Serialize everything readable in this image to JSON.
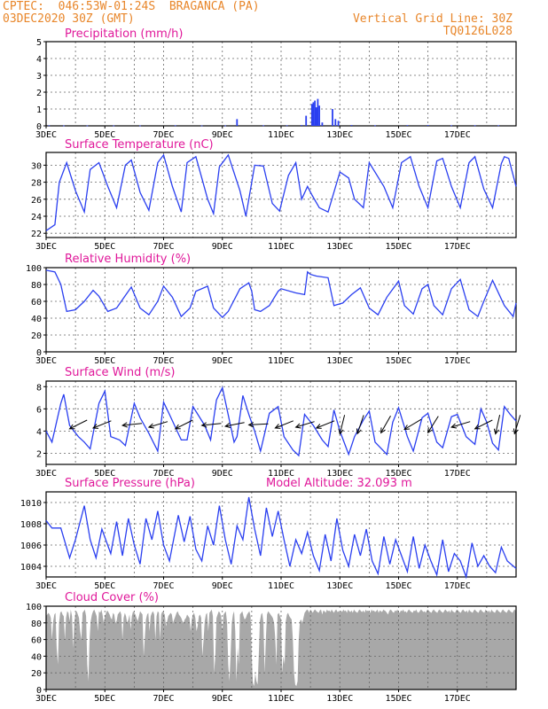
{
  "header": {
    "line1": "CPTEC:  046:53W-01:24S  BRAGANCA (PA)",
    "line2": "03DEC2020 30Z (GMT)",
    "grid_note": "Vertical Grid Line: 30Z",
    "code": "TQ0126L028"
  },
  "colors": {
    "header": "#e8862a",
    "title": "#e0189a",
    "line": "#2a3ff0",
    "arrow": "#000000",
    "cloud": "#a8a8a8",
    "grid": "#666666"
  },
  "x_ticks": [
    "3DEC",
    "5DEC",
    "7DEC",
    "9DEC",
    "11DEC",
    "13DEC",
    "15DEC",
    "17DEC"
  ],
  "chart_data": [
    {
      "type": "bar",
      "title": "Precipitation (mm/h)",
      "ylim": [
        0,
        5
      ],
      "yticks": [
        0,
        1,
        2,
        3,
        4,
        5
      ],
      "x_unit": "days since 3DEC",
      "x_range": [
        0,
        16
      ],
      "values_xy": [
        [
          0.1,
          0.03
        ],
        [
          0.6,
          0.02
        ],
        [
          1.4,
          0.02
        ],
        [
          2.3,
          0.02
        ],
        [
          3.2,
          0.02
        ],
        [
          4.4,
          0.03
        ],
        [
          5.3,
          0.02
        ],
        [
          6.1,
          0.02
        ],
        [
          6.5,
          0.4
        ],
        [
          7.4,
          0.03
        ],
        [
          8.2,
          0.03
        ],
        [
          8.7,
          0.05
        ],
        [
          8.85,
          0.6
        ],
        [
          9.05,
          1.3
        ],
        [
          9.1,
          1.4
        ],
        [
          9.15,
          1.5
        ],
        [
          9.2,
          1.1
        ],
        [
          9.25,
          1.6
        ],
        [
          9.3,
          1.2
        ],
        [
          9.4,
          0.2
        ],
        [
          9.75,
          1.0
        ],
        [
          9.85,
          0.4
        ],
        [
          9.95,
          0.3
        ],
        [
          10.4,
          0.05
        ],
        [
          11.2,
          0.03
        ],
        [
          12.3,
          0.04
        ],
        [
          13.0,
          0.05
        ],
        [
          13.8,
          0.03
        ],
        [
          14.6,
          0.03
        ],
        [
          15.4,
          0.03
        ]
      ]
    },
    {
      "type": "line",
      "title": "Surface Temperature (nC)",
      "ylim": [
        21.5,
        31.5
      ],
      "yticks": [
        22,
        24,
        26,
        28,
        30
      ],
      "x_range": [
        0,
        16
      ],
      "x": [
        0,
        0.3,
        0.45,
        0.7,
        1.0,
        1.3,
        1.5,
        1.8,
        2.1,
        2.4,
        2.7,
        2.9,
        3.2,
        3.5,
        3.8,
        4.0,
        4.3,
        4.6,
        4.8,
        5.1,
        5.5,
        5.7,
        5.9,
        6.2,
        6.6,
        6.8,
        7.1,
        7.4,
        7.7,
        7.95,
        8.25,
        8.5,
        8.7,
        8.9,
        9.05,
        9.3,
        9.6,
        10.0,
        10.3,
        10.5,
        10.8,
        11.0,
        11.5,
        11.8,
        12.1,
        12.4,
        12.7,
        13.0,
        13.3,
        13.5,
        13.8,
        14.1,
        14.4,
        14.6,
        14.9,
        15.2,
        15.5,
        15.6,
        15.75,
        16.0
      ],
      "values": [
        22.3,
        23.0,
        28.0,
        30.3,
        27.0,
        24.5,
        29.5,
        30.3,
        27.5,
        25.0,
        30.0,
        30.6,
        26.8,
        24.7,
        30.3,
        31.2,
        27.5,
        24.5,
        30.3,
        31.0,
        26.0,
        24.3,
        29.8,
        31.2,
        27.0,
        24.0,
        30.0,
        29.9,
        25.5,
        24.6,
        28.8,
        30.3,
        26.0,
        27.5,
        26.5,
        25.0,
        24.5,
        29.2,
        28.5,
        26.0,
        25.0,
        30.3,
        27.5,
        25.0,
        30.3,
        31.0,
        27.5,
        25.0,
        30.5,
        30.8,
        27.5,
        25.0,
        30.3,
        31.0,
        27.2,
        25.0,
        30.2,
        31.0,
        30.8,
        27.5
      ]
    },
    {
      "type": "line",
      "title": "Relative Humidity (%)",
      "ylim": [
        0,
        100
      ],
      "yticks": [
        0,
        20,
        40,
        60,
        80,
        100
      ],
      "x_range": [
        0,
        16
      ],
      "x": [
        0,
        0.3,
        0.5,
        0.7,
        1.0,
        1.3,
        1.6,
        1.8,
        2.1,
        2.4,
        2.7,
        2.9,
        3.2,
        3.5,
        3.8,
        4.0,
        4.3,
        4.6,
        4.9,
        5.1,
        5.5,
        5.7,
        6.0,
        6.2,
        6.6,
        6.9,
        7.0,
        7.1,
        7.3,
        7.6,
        7.9,
        8.0,
        8.5,
        8.8,
        8.9,
        9.0,
        9.2,
        9.6,
        9.8,
        10.1,
        10.4,
        10.7,
        11.0,
        11.3,
        11.6,
        12.0,
        12.2,
        12.5,
        12.8,
        13.0,
        13.2,
        13.5,
        13.8,
        14.1,
        14.4,
        14.7,
        14.9,
        15.2,
        15.6,
        15.9,
        16.0
      ],
      "values": [
        97,
        95,
        80,
        48,
        50,
        60,
        73,
        66,
        48,
        52,
        67,
        77,
        52,
        44,
        60,
        78,
        65,
        42,
        52,
        72,
        78,
        52,
        41,
        48,
        75,
        82,
        72,
        50,
        48,
        55,
        72,
        75,
        70,
        68,
        95,
        92,
        90,
        88,
        55,
        58,
        68,
        76,
        52,
        44,
        65,
        84,
        55,
        45,
        75,
        80,
        55,
        44,
        75,
        86,
        50,
        42,
        60,
        85,
        55,
        42,
        58
      ]
    },
    {
      "type": "line",
      "title": "Surface Wind (m/s)",
      "ylim": [
        1,
        8.5
      ],
      "yticks": [
        2,
        4,
        6,
        8
      ],
      "x_range": [
        0,
        16
      ],
      "x": [
        0,
        0.2,
        0.5,
        0.6,
        0.8,
        1.1,
        1.3,
        1.5,
        1.8,
        2.0,
        2.2,
        2.5,
        2.7,
        3.0,
        3.2,
        3.5,
        3.8,
        4.0,
        4.2,
        4.6,
        4.8,
        5.0,
        5.4,
        5.6,
        5.8,
        6.0,
        6.4,
        6.5,
        6.7,
        6.9,
        7.1,
        7.3,
        7.6,
        7.9,
        8.1,
        8.4,
        8.6,
        8.8,
        9.1,
        9.4,
        9.6,
        9.8,
        10.0,
        10.3,
        10.5,
        10.8,
        11.0,
        11.2,
        11.6,
        11.8,
        12.0,
        12.3,
        12.5,
        12.8,
        13.0,
        13.3,
        13.5,
        13.8,
        14.0,
        14.3,
        14.6,
        14.8,
        15.0,
        15.2,
        15.4,
        15.6,
        15.8,
        16.0
      ],
      "values": [
        4.0,
        3.0,
        6.5,
        7.3,
        4.5,
        3.5,
        3.0,
        2.4,
        6.5,
        7.6,
        3.5,
        3.2,
        2.7,
        6.5,
        5.2,
        3.8,
        2.2,
        6.6,
        5.5,
        3.2,
        3.2,
        6.2,
        4.5,
        3.2,
        6.8,
        7.9,
        3.0,
        3.5,
        7.2,
        5.5,
        4.0,
        2.2,
        5.6,
        6.2,
        3.5,
        2.3,
        1.8,
        5.5,
        4.5,
        3.2,
        2.6,
        5.9,
        4.0,
        1.9,
        3.5,
        5.0,
        5.8,
        3.0,
        1.9,
        4.8,
        6.1,
        3.5,
        2.2,
        5.2,
        5.6,
        3.0,
        2.5,
        5.3,
        5.5,
        3.5,
        2.8,
        6.0,
        4.8,
        2.9,
        2.3,
        6.2,
        5.5,
        4.9
      ],
      "arrows_x": [
        0.8,
        1.6,
        2.6,
        3.5,
        4.4,
        5.3,
        6.1,
        6.9,
        7.8,
        8.5,
        9.2,
        10.0,
        10.6,
        11.4,
        12.2,
        13.0,
        13.8,
        14.6,
        15.3,
        15.95
      ],
      "arrows_dir": [
        [
          -1,
          0.5
        ],
        [
          -1,
          0.4
        ],
        [
          -1,
          0.1
        ],
        [
          -1,
          0.3
        ],
        [
          -1,
          0.5
        ],
        [
          -1,
          0.1
        ],
        [
          -1,
          0.2
        ],
        [
          -1,
          0.05
        ],
        [
          -1,
          0.4
        ],
        [
          -1,
          0.3
        ],
        [
          -1,
          0.4
        ],
        [
          -0.2,
          0.8
        ],
        [
          -0.3,
          0.9
        ],
        [
          -0.4,
          0.7
        ],
        [
          -1,
          0.6
        ],
        [
          -0.5,
          0.8
        ],
        [
          -1,
          0.3
        ],
        [
          -1,
          0.5
        ],
        [
          -0.2,
          0.9
        ],
        [
          -0.3,
          1
        ]
      ]
    },
    {
      "type": "line",
      "title": "Surface Pressure (hPa)",
      "note": "Model Altitude: 32.093 m",
      "ylim": [
        1003.0,
        1011.0
      ],
      "yticks": [
        1004,
        1006,
        1008,
        1010
      ],
      "x_range": [
        0,
        16
      ],
      "x": [
        0,
        0.2,
        0.5,
        0.8,
        1.0,
        1.3,
        1.5,
        1.7,
        1.9,
        2.2,
        2.4,
        2.6,
        2.8,
        3.0,
        3.2,
        3.4,
        3.6,
        3.8,
        4.0,
        4.2,
        4.5,
        4.7,
        4.9,
        5.1,
        5.3,
        5.5,
        5.7,
        5.9,
        6.1,
        6.3,
        6.5,
        6.7,
        6.9,
        7.1,
        7.3,
        7.5,
        7.7,
        7.9,
        8.1,
        8.3,
        8.5,
        8.7,
        8.9,
        9.1,
        9.3,
        9.5,
        9.7,
        9.9,
        10.1,
        10.3,
        10.5,
        10.7,
        10.9,
        11.1,
        11.3,
        11.5,
        11.7,
        11.9,
        12.1,
        12.3,
        12.5,
        12.7,
        12.9,
        13.1,
        13.3,
        13.5,
        13.7,
        13.9,
        14.1,
        14.3,
        14.5,
        14.7,
        14.9,
        15.1,
        15.3,
        15.5,
        15.7,
        16.0
      ],
      "values": [
        1008.3,
        1007.6,
        1007.6,
        1004.8,
        1006.5,
        1009.7,
        1006.5,
        1004.8,
        1007.5,
        1005.2,
        1008.2,
        1005.0,
        1008.5,
        1006.0,
        1004.2,
        1008.5,
        1006.5,
        1009.2,
        1006.0,
        1004.5,
        1008.8,
        1006.3,
        1008.7,
        1005.6,
        1004.5,
        1007.8,
        1006.0,
        1009.7,
        1006.5,
        1004.2,
        1007.8,
        1006.5,
        1010.5,
        1007.5,
        1005.0,
        1009.5,
        1006.8,
        1009.2,
        1006.5,
        1004.0,
        1006.5,
        1005.2,
        1007.2,
        1005.0,
        1003.6,
        1007.0,
        1004.5,
        1008.5,
        1005.5,
        1004.0,
        1007.0,
        1005.0,
        1007.5,
        1004.5,
        1003.3,
        1006.8,
        1004.2,
        1006.5,
        1005.0,
        1003.5,
        1006.8,
        1003.8,
        1006.0,
        1004.5,
        1003.2,
        1006.5,
        1003.5,
        1005.2,
        1004.5,
        1003.0,
        1006.2,
        1004.0,
        1005.0,
        1004.0,
        1003.4,
        1005.8,
        1004.5,
        1003.8
      ]
    },
    {
      "type": "area",
      "title": "Cloud Cover (%)",
      "ylim": [
        0,
        100
      ],
      "yticks": [
        0,
        20,
        40,
        60,
        80,
        100
      ],
      "x_range": [
        0,
        16
      ],
      "step": 0.04,
      "values": [
        88,
        90,
        92,
        90,
        86,
        60,
        82,
        90,
        92,
        50,
        30,
        80,
        92,
        94,
        90,
        88,
        60,
        86,
        94,
        92,
        82,
        96,
        88,
        50,
        80,
        92,
        94,
        90,
        86,
        70,
        60,
        92,
        94,
        96,
        88,
        30,
        10,
        60,
        82,
        90,
        94,
        96,
        92,
        88,
        70,
        94,
        92,
        96,
        90,
        80,
        88,
        92,
        95,
        93,
        90,
        86,
        84,
        92,
        90,
        80,
        82,
        90,
        92,
        94,
        90,
        60,
        86,
        92,
        88,
        80,
        84,
        90,
        72,
        88,
        94,
        92,
        90,
        86,
        82,
        88,
        94,
        92,
        90,
        40,
        62,
        84,
        90,
        92,
        70,
        88,
        92,
        94,
        90,
        60,
        88,
        94,
        92,
        60,
        90,
        94,
        92,
        90,
        76,
        82,
        88,
        90,
        92,
        90,
        80,
        84,
        88,
        92,
        94,
        90,
        88,
        86,
        82,
        80,
        84,
        86,
        90,
        88,
        86,
        70,
        84,
        90,
        92,
        86,
        70,
        76,
        88,
        90,
        86,
        40,
        60,
        82,
        90,
        92,
        70,
        92,
        94,
        96,
        88,
        20,
        40,
        86,
        90,
        94,
        92,
        88,
        70,
        90,
        92,
        94,
        80,
        30,
        10,
        40,
        80,
        90,
        94,
        70,
        10,
        50,
        30,
        90,
        92,
        94,
        88,
        84,
        86,
        90,
        92,
        94,
        88,
        40,
        8,
        4,
        20,
        10,
        6,
        40,
        82,
        90,
        92,
        80,
        20,
        60,
        90,
        94,
        92,
        90,
        88,
        86,
        80,
        62,
        30,
        90,
        92,
        88,
        84,
        20,
        40,
        30,
        82,
        90,
        92,
        88,
        86,
        84,
        60,
        20,
        6,
        4,
        10,
        60,
        82,
        84,
        80,
        86,
        92,
        94,
        96,
        95,
        92,
        96,
        94,
        92,
        95,
        96,
        94,
        93,
        92,
        95,
        96,
        90,
        95,
        94,
        92,
        96,
        94,
        95,
        93,
        96,
        94,
        92,
        95,
        96,
        93,
        94,
        92,
        95,
        93,
        96,
        94,
        95,
        92,
        96,
        94,
        93,
        95,
        92,
        96,
        94,
        93,
        92,
        95,
        96,
        94,
        93,
        95,
        92,
        96,
        94,
        95,
        93,
        92,
        96,
        94,
        95,
        93,
        94,
        96,
        92,
        95,
        94,
        93,
        96,
        95,
        94,
        92,
        90,
        94,
        96,
        95,
        93,
        92,
        95,
        94,
        96,
        93,
        92,
        95,
        94,
        96,
        93,
        94,
        92,
        95,
        96,
        94,
        93,
        92,
        95,
        94,
        96,
        93,
        92,
        94,
        96,
        95,
        93,
        94,
        92,
        95,
        96,
        94,
        93,
        92,
        95,
        96,
        94,
        93,
        92,
        95,
        96,
        94,
        93,
        92,
        95,
        96,
        94,
        93,
        95,
        92,
        96,
        94,
        93,
        92,
        95,
        96,
        94,
        93,
        92,
        95,
        96,
        94,
        93,
        95,
        92,
        96,
        94,
        93,
        92,
        95,
        96,
        94,
        93,
        92,
        95,
        96,
        94,
        93,
        92,
        96,
        94,
        93,
        95,
        92,
        96,
        94,
        93,
        92,
        95,
        96,
        94,
        93,
        92,
        95,
        96,
        94,
        93,
        92,
        95,
        96,
        94,
        93,
        92,
        95,
        96,
        94,
        93,
        92,
        95,
        96,
        94,
        93,
        92,
        95,
        96,
        94,
        93,
        92,
        95,
        96,
        94,
        93,
        92,
        96,
        95,
        94,
        92,
        93,
        96,
        94,
        95,
        92,
        93,
        96,
        94,
        95,
        92,
        93,
        96,
        94,
        95,
        92,
        93,
        96,
        94,
        95,
        92
      ]
    }
  ]
}
